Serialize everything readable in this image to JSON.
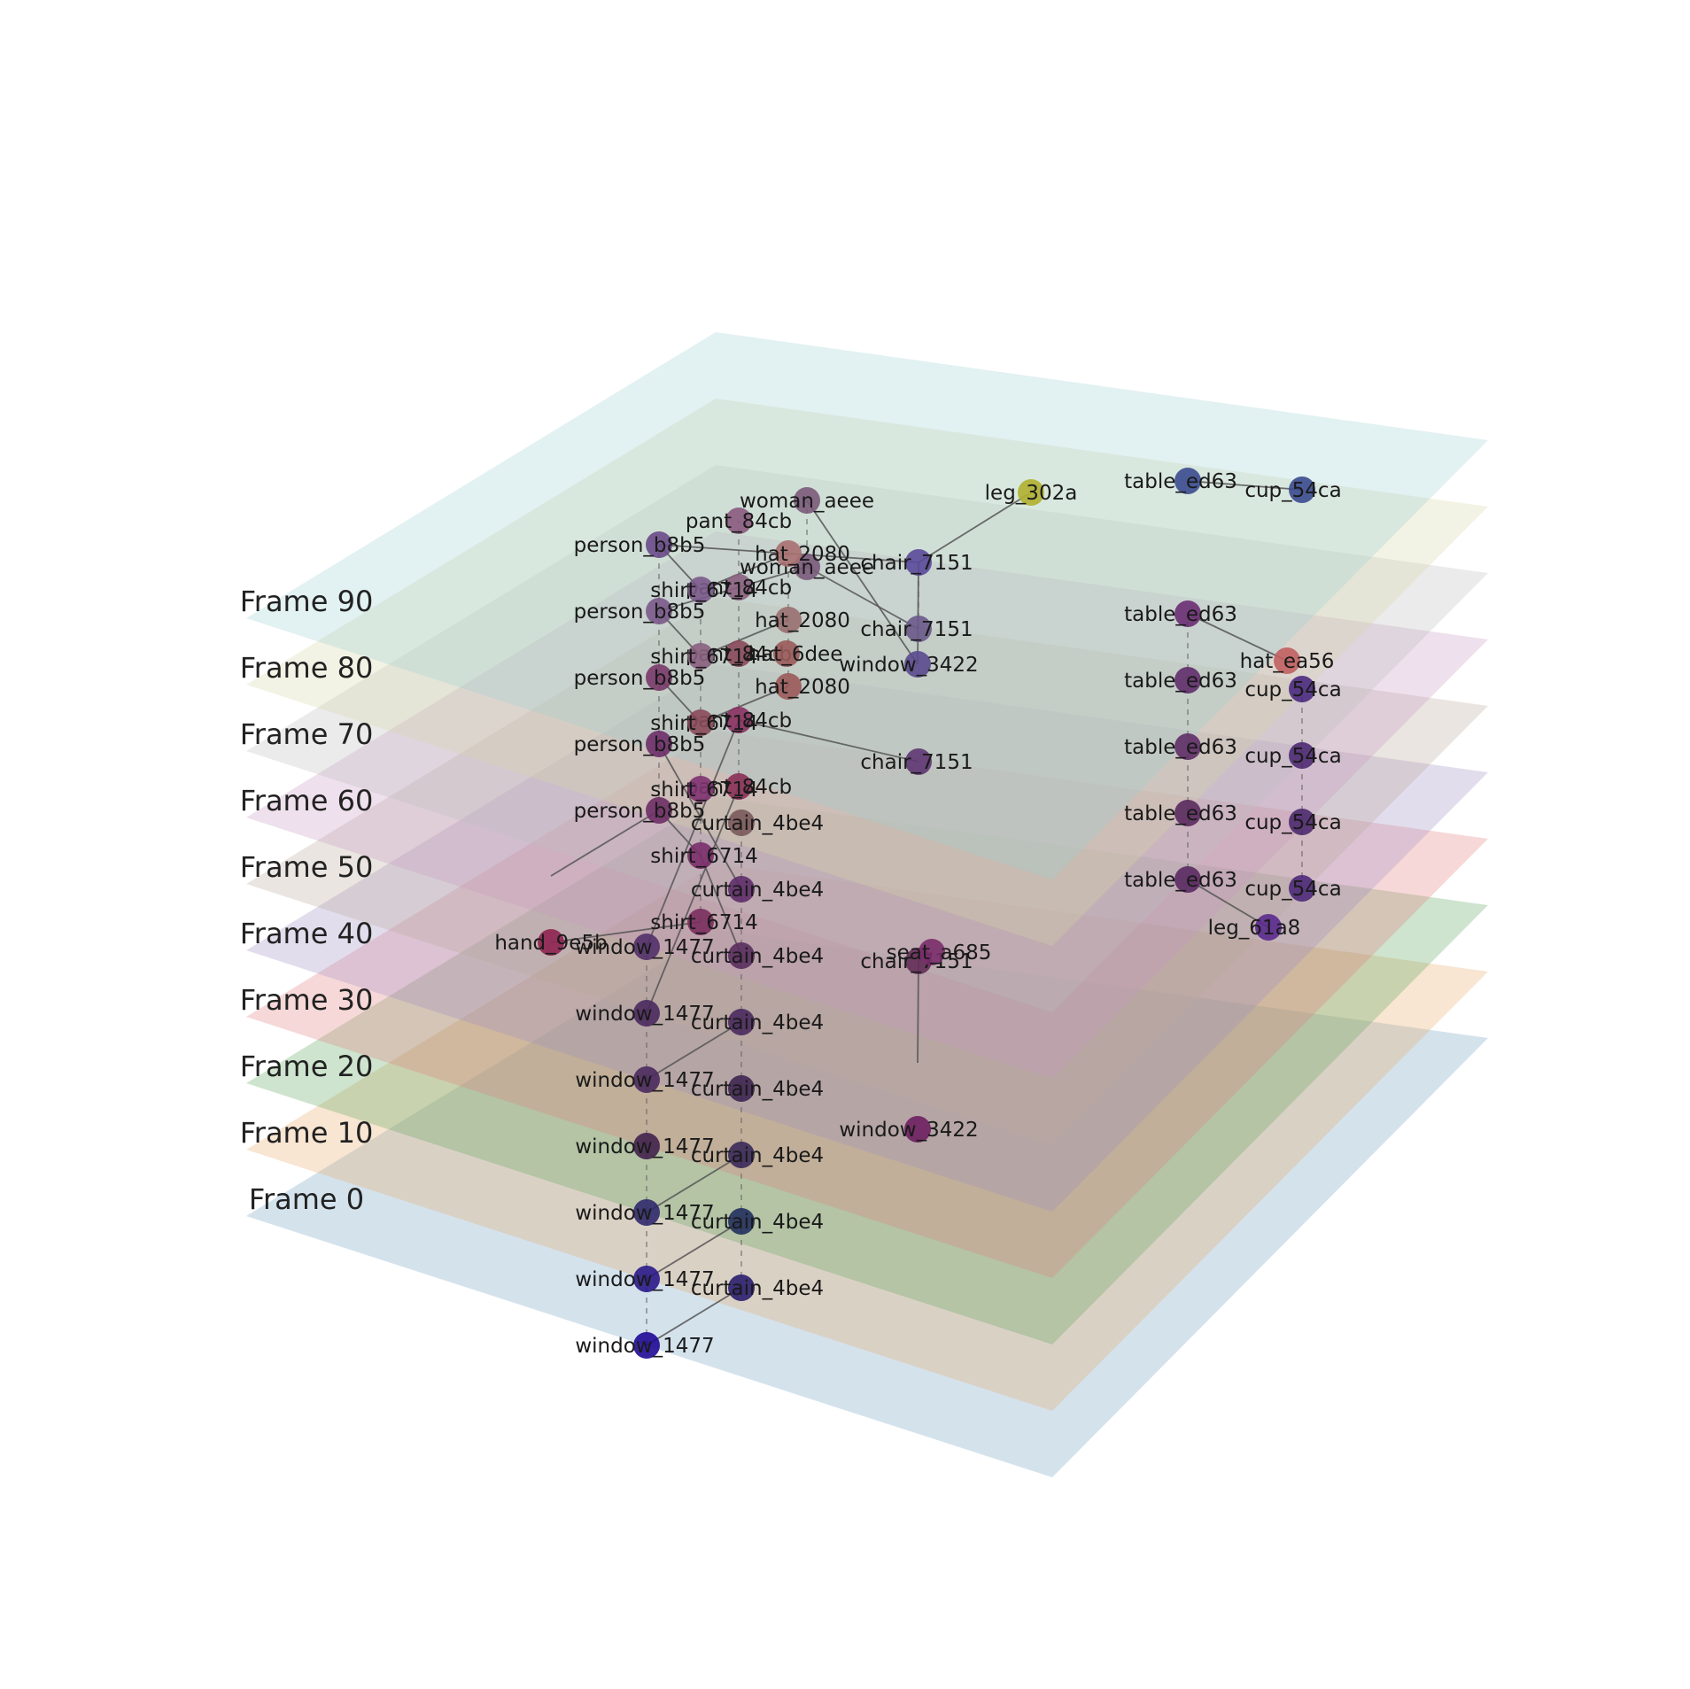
{
  "frames": [
    {
      "label": "Frame 0",
      "color": "#6f9fbf",
      "nodes": [
        {
          "id": "window_1477",
          "color": "#1e0a96"
        },
        {
          "id": "curtain_4be4",
          "color": "#2a1e6e"
        }
      ],
      "edges": [
        [
          "window_1477",
          "curtain_4be4"
        ]
      ]
    },
    {
      "label": "Frame 10",
      "color": "#e8a86a",
      "nodes": [
        {
          "id": "window_1477",
          "color": "#2a1a8a"
        },
        {
          "id": "curtain_4be4",
          "color": "#22305e"
        }
      ],
      "edges": [
        [
          "window_1477",
          "curtain_4be4"
        ]
      ]
    },
    {
      "label": "Frame 20",
      "color": "#5ca55c",
      "nodes": [
        {
          "id": "window_1477",
          "color": "#2f2a6e"
        },
        {
          "id": "curtain_4be4",
          "color": "#3a2a5a"
        },
        {
          "id": "window_3422",
          "color": "#6e2060"
        }
      ],
      "edges": [
        [
          "window_1477",
          "curtain_4be4"
        ]
      ]
    },
    {
      "label": "Frame 30",
      "color": "#e07e7e",
      "nodes": [
        {
          "id": "window_1477",
          "color": "#42224e"
        },
        {
          "id": "curtain_4be4",
          "color": "#3e2652"
        },
        {
          "id": "chair_7151",
          "color": "#642e58"
        },
        {
          "id": "seat_a685",
          "color": "#7a2e6a"
        },
        {
          "id": "table_ed63",
          "color": "#5a2a62"
        },
        {
          "id": "cup_54ca",
          "color": "#4e2a7a"
        },
        {
          "id": "leg_61a8",
          "color": "#5a2a8e"
        }
      ],
      "edges": [
        [
          "chair_7151",
          "seat_a685"
        ],
        [
          "chair_7151",
          "window_3422"
        ],
        [
          "table_ed63",
          "leg_61a8"
        ]
      ]
    },
    {
      "label": "Frame 40",
      "color": "#9e8ec4",
      "nodes": [
        {
          "id": "window_1477",
          "color": "#4a2a5e"
        },
        {
          "id": "curtain_4be4",
          "color": "#4a2a5e"
        },
        {
          "id": "shirt_6714",
          "color": "#7a2e5e"
        },
        {
          "id": "hand_9e5b",
          "color": "#8e2452"
        },
        {
          "id": "table_ed63",
          "color": "#5a2a5e"
        },
        {
          "id": "cup_54ca",
          "color": "#4e2a6e"
        }
      ],
      "edges": [
        [
          "window_1477",
          "curtain_4be4"
        ],
        [
          "shirt_6714",
          "hand_9e5b"
        ]
      ]
    },
    {
      "label": "Frame 50",
      "color": "#b8a89a",
      "nodes": [
        {
          "id": "window_1477",
          "color": "#4a2a5e"
        },
        {
          "id": "shirt_6714",
          "color": "#7a2e6a"
        },
        {
          "id": "pant_84cb",
          "color": "#8a3056"
        },
        {
          "id": "person_b8b5",
          "color": "#6e2e66"
        },
        {
          "id": "curtain_4be4",
          "color": "#5a2e5e"
        },
        {
          "id": "table_ed63",
          "color": "#5e2e66"
        },
        {
          "id": "cup_54ca",
          "color": "#4e2a72"
        }
      ],
      "edges": [
        [
          "window_1477",
          "pant_84cb"
        ],
        [
          "person_b8b5",
          "shirt_6714"
        ],
        [
          "shirt_6714",
          "curtain_4be4"
        ],
        [
          "person_b8b5",
          "hand_9e5b"
        ]
      ]
    },
    {
      "label": "Frame 60",
      "color": "#c898c0",
      "nodes": [
        {
          "id": "window_1477",
          "color": "#52306a"
        },
        {
          "id": "shirt_6714",
          "color": "#7e3270"
        },
        {
          "id": "pant_84cb",
          "color": "#8a3060"
        },
        {
          "id": "person_b8b5",
          "color": "#6e2e6a"
        },
        {
          "id": "curtain_4be4",
          "color": "#5e2e6a"
        },
        {
          "id": "chair_7151",
          "color": "#5e3672"
        },
        {
          "id": "table_ed63",
          "color": "#602e6a"
        },
        {
          "id": "cup_54ca",
          "color": "#4a2a80"
        }
      ],
      "edges": [
        [
          "window_1477",
          "pant_84cb"
        ],
        [
          "person_b8b5",
          "curtain_4be4"
        ],
        [
          "pant_84cb",
          "chair_7151"
        ]
      ]
    },
    {
      "label": "Frame 70",
      "color": "#bcbcbc",
      "nodes": [
        {
          "id": "person_b8b5",
          "color": "#7a3a6a"
        },
        {
          "id": "shirt_6714",
          "color": "#8a4a5a"
        },
        {
          "id": "pant_84cb",
          "color": "#8a4a5a"
        },
        {
          "id": "hat_2080",
          "color": "#9a5a5a"
        },
        {
          "id": "curtain_4be4",
          "color": "#7a5a5a"
        },
        {
          "id": "hat_6dee",
          "color": "#9a5a5a"
        },
        {
          "id": "table_ed63",
          "color": "#6a2e72"
        },
        {
          "id": "hat_ea56",
          "color": "#c06060"
        }
      ],
      "edges": [
        [
          "person_b8b5",
          "shirt_6714"
        ],
        [
          "shirt_6714",
          "hat_2080"
        ],
        [
          "table_ed63",
          "hat_ea56"
        ]
      ]
    },
    {
      "label": "Frame 80",
      "color": "#d8d8a8",
      "nodes": [
        {
          "id": "person_b8b5",
          "color": "#7a5a8a"
        },
        {
          "id": "shirt_6714",
          "color": "#8a6080"
        },
        {
          "id": "pant_84cb",
          "color": "#8a6080"
        },
        {
          "id": "hat_2080",
          "color": "#9a7070"
        },
        {
          "id": "woman_aeee",
          "color": "#7a5a7a"
        },
        {
          "id": "chair_7151",
          "color": "#6a5a8a"
        }
      ],
      "edges": [
        [
          "person_b8b5",
          "shirt_6714"
        ],
        [
          "shirt_6714",
          "hat_2080"
        ],
        [
          "woman_aeee",
          "chair_7151"
        ],
        [
          "person_b8b5",
          "woman_aeee"
        ]
      ]
    },
    {
      "label": "Frame 90",
      "color": "#9ed0d0",
      "nodes": [
        {
          "id": "person_b8b5",
          "color": "#6a4a8a"
        },
        {
          "id": "shirt_6714",
          "color": "#7a5a8a"
        },
        {
          "id": "pant_84cb",
          "color": "#8a5a80"
        },
        {
          "id": "hat_2080",
          "color": "#a87070"
        },
        {
          "id": "woman_aeee",
          "color": "#7a5a7a"
        },
        {
          "id": "window_3422",
          "color": "#5a4a8e"
        },
        {
          "id": "chair_7151",
          "color": "#5a4a9a"
        },
        {
          "id": "leg_302a",
          "color": "#b0b030"
        },
        {
          "id": "table_ed63",
          "color": "#3a4a8e"
        },
        {
          "id": "cup_54ca",
          "color": "#3a4a8e"
        }
      ],
      "edges": [
        [
          "person_b8b5",
          "shirt_6714"
        ],
        [
          "shirt_6714",
          "hat_2080"
        ],
        [
          "woman_aeee",
          "window_3422"
        ],
        [
          "chair_7151",
          "leg_302a"
        ],
        [
          "window_3422",
          "chair_7151"
        ],
        [
          "table_ed63",
          "cup_54ca"
        ],
        [
          "person_b8b5",
          "chair_7151"
        ]
      ]
    }
  ]
}
